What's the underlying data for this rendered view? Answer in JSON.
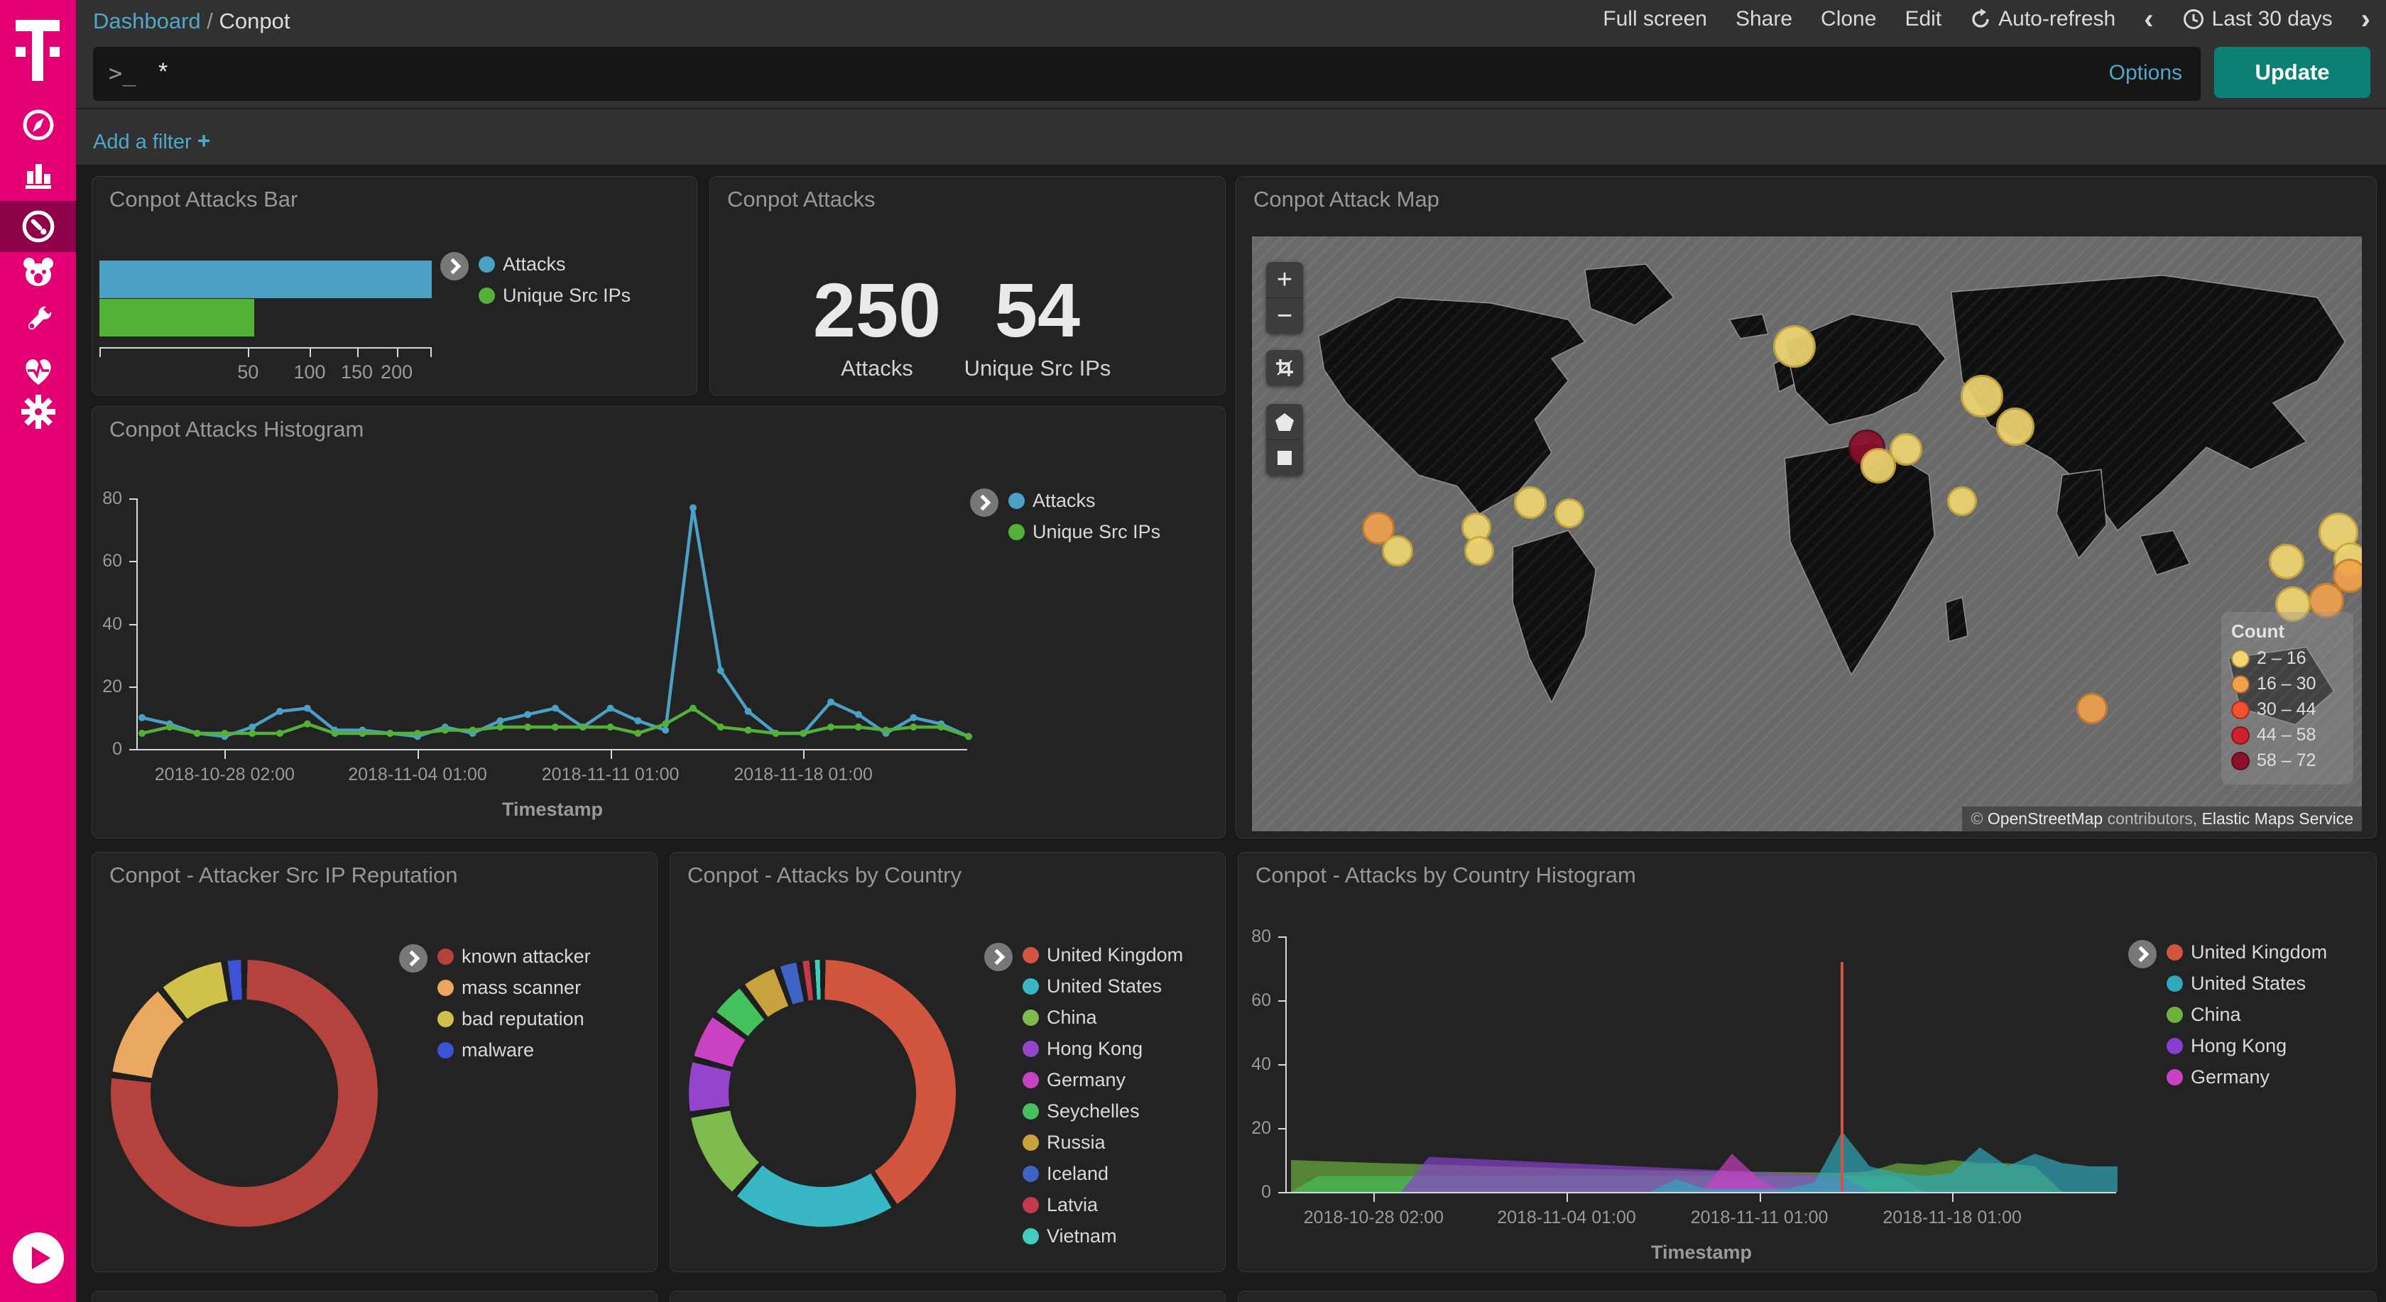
{
  "colors": {
    "brand_magenta": "#e20074",
    "sidebar_active": "#8e004a",
    "teal_button": "#0b8176",
    "link_blue": "#4fa8c9",
    "panel_bg": "#232323",
    "header_bg": "#313131",
    "content_bg": "#1a1a1a"
  },
  "sidebar": {
    "active": "dashboard",
    "items": [
      {
        "id": "discover",
        "icon": "compass-icon"
      },
      {
        "id": "visualize",
        "icon": "bar-chart-icon"
      },
      {
        "id": "dashboard",
        "icon": "gauge-icon"
      },
      {
        "id": "apm",
        "icon": "bear-icon"
      },
      {
        "id": "dev-tools",
        "icon": "wrench-icon"
      },
      {
        "id": "monitoring",
        "icon": "heartbeat-icon"
      },
      {
        "id": "management",
        "icon": "gear-icon"
      }
    ],
    "collapse_icon": "play-circle-icon"
  },
  "topbar": {
    "breadcrumb": {
      "section": "Dashboard",
      "separator": "/",
      "page": "Conpot"
    },
    "actions": [
      "Full screen",
      "Share",
      "Clone",
      "Edit"
    ],
    "auto_refresh": "Auto-refresh",
    "prev": "‹",
    "time_range": "Last 30 days",
    "next": "›"
  },
  "querybar": {
    "prompt": ">_",
    "query": "*",
    "options": "Options",
    "update": "Update"
  },
  "filterbar": {
    "label": "Add a filter",
    "plus": "+"
  },
  "chart_data": {
    "attacks_bar": {
      "type": "bar",
      "title": "Conpot Attacks Bar",
      "orientation": "horizontal",
      "scale": "sqrt",
      "xmax": 250,
      "xticks": [
        50,
        100,
        150,
        200
      ],
      "series": [
        {
          "name": "Attacks",
          "value": 250,
          "color": "#4aa0c5"
        },
        {
          "name": "Unique Src IPs",
          "value": 54,
          "color": "#53b138"
        }
      ]
    },
    "attacks_metric": {
      "type": "metric",
      "title": "Conpot Attacks",
      "metrics": [
        {
          "value": "250",
          "label": "Attacks"
        },
        {
          "value": "54",
          "label": "Unique Src IPs"
        }
      ]
    },
    "attack_map": {
      "type": "map",
      "title": "Conpot Attack Map",
      "controls": [
        "zoom-in",
        "zoom-out",
        "fit-bounds",
        "draw-polygon",
        "draw-rectangle"
      ],
      "legend": {
        "title": "Count",
        "entries": [
          {
            "label": "2 – 16",
            "color": "#f0d572"
          },
          {
            "label": "16 – 30",
            "color": "#f0a14e"
          },
          {
            "label": "30 – 44",
            "color": "#f4502e"
          },
          {
            "label": "44 – 58",
            "color": "#d0202d"
          },
          {
            "label": "58 – 72",
            "color": "#8c0f2d"
          }
        ]
      },
      "attribution": {
        "prefix": "© ",
        "osm": "OpenStreetMap",
        "middle": " contributors, ",
        "ems": "Elastic Maps Service"
      },
      "bubbles": [
        {
          "x": 11.4,
          "y": 49.0,
          "r": 23,
          "bucket": 1
        },
        {
          "x": 13.1,
          "y": 52.9,
          "r": 22,
          "bucket": 0
        },
        {
          "x": 20.2,
          "y": 48.9,
          "r": 21,
          "bucket": 0
        },
        {
          "x": 20.5,
          "y": 52.9,
          "r": 21,
          "bucket": 0
        },
        {
          "x": 25.1,
          "y": 44.7,
          "r": 23,
          "bucket": 0
        },
        {
          "x": 28.6,
          "y": 46.5,
          "r": 21,
          "bucket": 0
        },
        {
          "x": 48.9,
          "y": 18.5,
          "r": 30,
          "bucket": 0
        },
        {
          "x": 55.4,
          "y": 35.6,
          "r": 26,
          "bucket": 4
        },
        {
          "x": 56.4,
          "y": 38.5,
          "r": 25,
          "bucket": 0
        },
        {
          "x": 58.9,
          "y": 35.8,
          "r": 23,
          "bucket": 0
        },
        {
          "x": 65.8,
          "y": 26.8,
          "r": 30,
          "bucket": 0
        },
        {
          "x": 68.8,
          "y": 32.0,
          "r": 27,
          "bucket": 0
        },
        {
          "x": 64.0,
          "y": 44.5,
          "r": 21,
          "bucket": 0
        },
        {
          "x": 75.7,
          "y": 79.4,
          "r": 22,
          "bucket": 1
        },
        {
          "x": 97.9,
          "y": 49.8,
          "r": 28,
          "bucket": 0
        },
        {
          "x": 93.2,
          "y": 54.7,
          "r": 25,
          "bucket": 0
        },
        {
          "x": 99.0,
          "y": 54.3,
          "r": 24,
          "bucket": 0
        },
        {
          "x": 98.9,
          "y": 57.0,
          "r": 24,
          "bucket": 1
        },
        {
          "x": 96.8,
          "y": 61.2,
          "r": 25,
          "bucket": 1
        },
        {
          "x": 93.8,
          "y": 61.8,
          "r": 25,
          "bucket": 0
        }
      ]
    },
    "attacks_histogram": {
      "type": "line",
      "title": "Conpot Attacks Histogram",
      "xlabel": "Timestamp",
      "ylim": [
        0,
        80
      ],
      "yticks": [
        0,
        20,
        40,
        60,
        80
      ],
      "tick_labels": [
        "2018-10-28 02:00",
        "2018-11-04 01:00",
        "2018-11-11 01:00",
        "2018-11-18 01:00"
      ],
      "tick_indices": [
        3,
        10,
        17,
        24
      ],
      "series": [
        {
          "name": "Attacks",
          "color": "#4aa0c5",
          "values": [
            10,
            8,
            5,
            4,
            7,
            12,
            13,
            6,
            6,
            5,
            4,
            7,
            5,
            9,
            11,
            13,
            7,
            13,
            9,
            6,
            77,
            25,
            12,
            5,
            5,
            15,
            11,
            5,
            10,
            8,
            4
          ]
        },
        {
          "name": "Unique Src IPs",
          "color": "#53b138",
          "values": [
            5,
            7,
            5,
            5,
            5,
            5,
            8,
            5,
            5,
            5,
            5,
            6,
            6,
            7,
            7,
            7,
            7,
            7,
            5,
            8,
            13,
            7,
            6,
            5,
            5,
            7,
            7,
            6,
            7,
            7,
            4
          ]
        }
      ]
    },
    "src_ip_reputation": {
      "type": "donut",
      "title": "Conpot - Attacker Src IP Reputation",
      "slices": [
        {
          "label": "known attacker",
          "value": 193,
          "color": "#b5423c"
        },
        {
          "label": "mass scanner",
          "value": 30,
          "color": "#e9a75f"
        },
        {
          "label": "bad reputation",
          "value": 21,
          "color": "#cfc24a"
        },
        {
          "label": "malware",
          "value": 6,
          "color": "#3e52d6"
        }
      ]
    },
    "attacks_by_country": {
      "type": "donut",
      "title": "Conpot - Attacks by Country",
      "slices": [
        {
          "label": "United Kingdom",
          "value": 104,
          "color": "#d2553f"
        },
        {
          "label": "United States",
          "value": 52,
          "color": "#38b8c4"
        },
        {
          "label": "China",
          "value": 28,
          "color": "#7fbc4f"
        },
        {
          "label": "Hong Kong",
          "value": 17,
          "color": "#9345cb"
        },
        {
          "label": "Germany",
          "value": 15,
          "color": "#cb41c3"
        },
        {
          "label": "Seychelles",
          "value": 12,
          "color": "#44c05c"
        },
        {
          "label": "Russia",
          "value": 12,
          "color": "#c7a23d"
        },
        {
          "label": "Iceland",
          "value": 7,
          "color": "#3d64c5"
        },
        {
          "label": "Latvia",
          "value": 4,
          "color": "#c23a4c"
        },
        {
          "label": "Vietnam",
          "value": 3,
          "color": "#41cdbb"
        }
      ]
    },
    "country_histogram": {
      "type": "area",
      "title": "Conpot - Attacks by Country Histogram",
      "xlabel": "Timestamp",
      "ylim": [
        0,
        80
      ],
      "yticks": [
        0,
        20,
        40,
        60,
        80
      ],
      "tick_labels": [
        "2018-10-28 02:00",
        "2018-11-04 01:00",
        "2018-11-11 01:00",
        "2018-11-18 01:00"
      ],
      "tick_indices": [
        3,
        10,
        17,
        24
      ],
      "legend_count": 5,
      "series": [
        {
          "name": "United Kingdom",
          "color": "#d2553f",
          "style": "spike",
          "values": [
            0,
            0,
            0,
            0,
            0,
            0,
            0,
            0,
            0,
            0,
            0,
            0,
            0,
            0,
            0,
            0,
            0,
            0,
            0,
            0,
            72,
            0,
            0,
            0,
            0,
            0,
            0,
            0,
            0,
            0,
            0
          ]
        },
        {
          "name": "United States",
          "color": "#2fa9bb",
          "values": [
            0,
            0,
            0,
            0,
            0,
            0,
            0,
            0,
            0,
            0,
            0,
            0,
            0,
            0,
            4,
            1,
            1,
            1,
            1,
            3,
            19,
            8,
            6,
            5,
            6,
            14,
            8,
            12,
            9,
            8,
            8
          ]
        },
        {
          "name": "China",
          "color": "#6db23f",
          "values": [
            10,
            9.7,
            9.4,
            9.1,
            8.9,
            8.6,
            8.4,
            8.1,
            7.9,
            7.7,
            7.4,
            7.2,
            7,
            6.8,
            6.6,
            6.5,
            6.4,
            6.3,
            6.2,
            6.1,
            6,
            6.5,
            9,
            8.5,
            10,
            9,
            9,
            8,
            0,
            0,
            0
          ]
        },
        {
          "name": "Hong Kong",
          "color": "#8a3fd1",
          "values": [
            0,
            0,
            0,
            0,
            0,
            11,
            10.6,
            10.2,
            9.8,
            9.4,
            9,
            8.6,
            8.2,
            7.8,
            7.4,
            7,
            6.6,
            6.2,
            5.8,
            5.4,
            5,
            0,
            0,
            0,
            0,
            0,
            0,
            0,
            0,
            0,
            0
          ]
        },
        {
          "name": "Germany",
          "color": "#cb41c3",
          "values": [
            0,
            0,
            0,
            0,
            0,
            0,
            0,
            0,
            0,
            0,
            0,
            0,
            0,
            0,
            0,
            1,
            12,
            4,
            0,
            0,
            0,
            0,
            0,
            0,
            0,
            0,
            0,
            0,
            0,
            0,
            0
          ]
        },
        {
          "name": "Seychelles",
          "color": "#44c05c",
          "hide_in_legend": true,
          "values": [
            0,
            5,
            5,
            5,
            5,
            5,
            5,
            5,
            5,
            5,
            5,
            5,
            5,
            5,
            5,
            5,
            5,
            5,
            5,
            5,
            5,
            5,
            5,
            0,
            0,
            0,
            0,
            0,
            0,
            0,
            0
          ]
        }
      ]
    }
  }
}
